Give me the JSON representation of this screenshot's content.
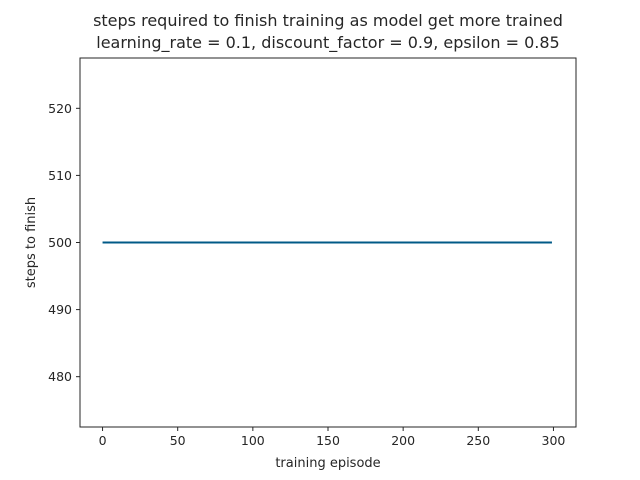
{
  "chart_data": {
    "type": "line",
    "title": "steps required to finish training as model get more trained",
    "subtitle": "learning_rate = 0.1, discount_factor = 0.9, epsilon = 0.85",
    "xlabel": "training episode",
    "ylabel": "steps to finish",
    "xlim": [
      -15,
      315
    ],
    "ylim": [
      472.5,
      527.5
    ],
    "xticks": [
      0,
      50,
      100,
      150,
      200,
      250,
      300
    ],
    "yticks": [
      480,
      490,
      500,
      510,
      520
    ],
    "grid": false,
    "series": [
      {
        "x": [
          0,
          299
        ],
        "values": [
          500,
          500
        ],
        "color": "#005a87"
      }
    ]
  }
}
